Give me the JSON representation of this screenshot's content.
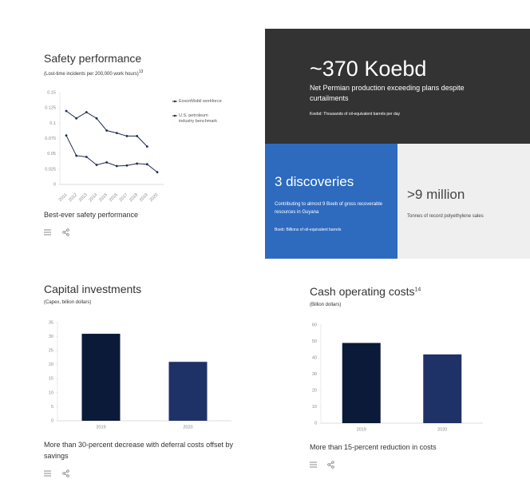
{
  "chart_data": [
    {
      "type": "line",
      "title": "Safety performance",
      "subtitle": "(Lost-time incidents per 200,000 work hours)",
      "title_note": "13",
      "categories": [
        "2011",
        "2012",
        "2013",
        "2014",
        "2015",
        "2016",
        "2017",
        "2018",
        "2019",
        "2020"
      ],
      "series": [
        {
          "name": "ExxonMobil workforce",
          "color": "#1b2a4e",
          "values": [
            0.08,
            0.047,
            0.045,
            0.032,
            0.036,
            0.03,
            0.031,
            0.034,
            0.033,
            0.02
          ]
        },
        {
          "name": "U.S. petroleum industry benchmark",
          "color": "#1b2a4e",
          "values": [
            0.12,
            0.108,
            0.118,
            0.108,
            0.088,
            0.084,
            0.079,
            0.079,
            0.062,
            null
          ]
        }
      ],
      "ylim": [
        0,
        0.15
      ],
      "yticks": [
        0,
        0.025,
        0.05,
        0.075,
        0.1,
        0.125,
        0.15
      ],
      "grid": false,
      "legend": "right",
      "caption": "Best-ever safety performance"
    },
    {
      "type": "bar",
      "title": "Capital investments",
      "subtitle": "(Capex, billion dollars)",
      "categories": [
        "2019",
        "2020"
      ],
      "values": [
        31,
        21
      ],
      "colors": [
        "#0b1a38",
        "#1f3268"
      ],
      "ylim": [
        0,
        35
      ],
      "yticks": [
        0,
        5,
        10,
        15,
        20,
        25,
        30,
        35
      ],
      "grid": false,
      "caption": "More than 30-percent decrease with deferral costs offset by savings"
    },
    {
      "type": "bar",
      "title": "Cash operating costs",
      "subtitle": "(Billion dollars)",
      "title_note": "14",
      "categories": [
        "2019",
        "2020"
      ],
      "values": [
        49,
        42
      ],
      "colors": [
        "#0b1a38",
        "#1f3268"
      ],
      "ylim": [
        0,
        60
      ],
      "yticks": [
        0,
        10,
        20,
        30,
        40,
        50,
        60
      ],
      "grid": false,
      "caption": "More than 15-percent reduction in costs"
    }
  ],
  "highlights": [
    {
      "figure": "~370 Koebd",
      "text": "Net Permian production exceeding plans despite curtailments",
      "note": "Koebd: Thousands of oil-equivalent barrels per day"
    },
    {
      "figure": "3 discoveries",
      "text": "Contributing to almost 9 Boeb of gross recoverable resources in Guyana",
      "note": "Boeb: Billions of oil-equivalent barrels"
    },
    {
      "figure": ">9 million",
      "text": "Tonnes of record polyethylene sales"
    }
  ]
}
